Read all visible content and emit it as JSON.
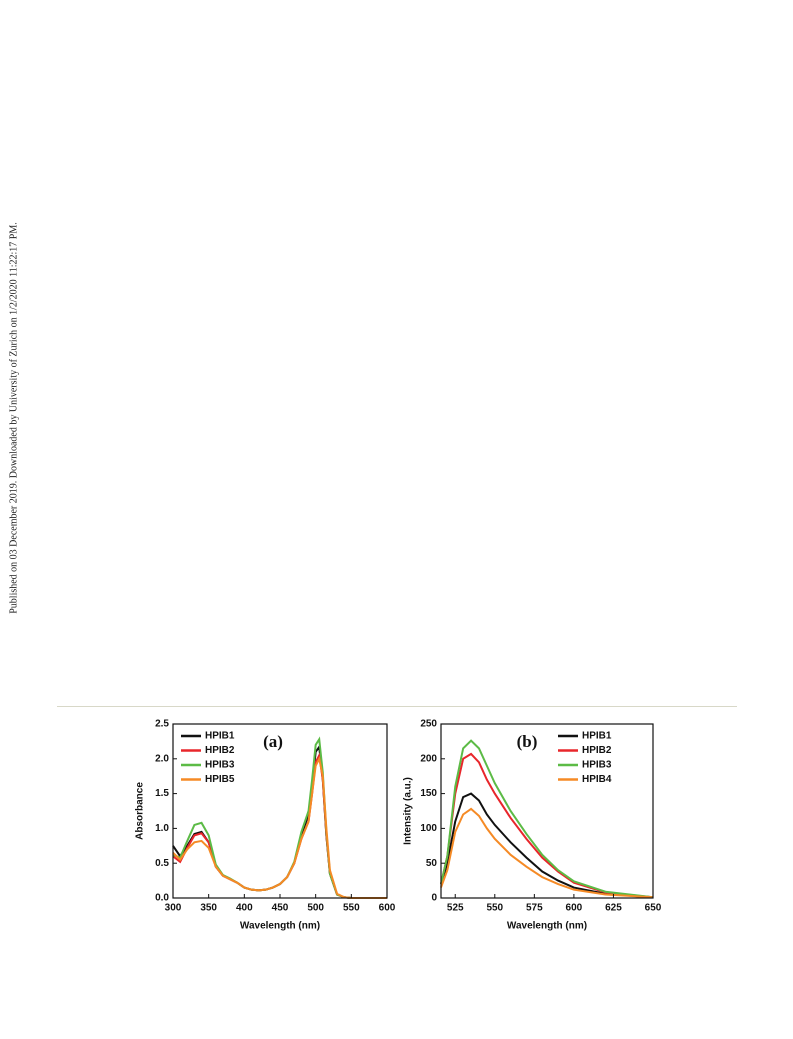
{
  "side_note": "Published on 03 December 2019. Downloaded by University of Zurich on 1/2/2020 11:22:17 PM.",
  "chart_data": [
    {
      "type": "line",
      "annotation": "(a)",
      "x_label": "Wavelength (nm)",
      "y_label": "Absorbance",
      "legend": "upper left",
      "xlim": [
        300,
        600
      ],
      "xticks": [
        300,
        350,
        400,
        450,
        500,
        550,
        600
      ],
      "ylim": [
        0,
        2.5
      ],
      "yticks": [
        {
          "value": 0,
          "label": "0.0"
        },
        0.5,
        {
          "value": 1,
          "label": "1.0"
        },
        1.5,
        {
          "value": 2,
          "label": "2.0"
        },
        2.5
      ],
      "x": [
        300,
        310,
        320,
        330,
        340,
        350,
        360,
        370,
        380,
        390,
        400,
        410,
        420,
        430,
        440,
        450,
        460,
        470,
        480,
        490,
        495,
        500,
        505,
        510,
        515,
        520,
        530,
        540,
        550,
        560,
        580,
        600
      ],
      "series": [
        {
          "name": "HPIB1",
          "color": "#111111",
          "values": [
            0.75,
            0.6,
            0.75,
            0.92,
            0.95,
            0.8,
            0.45,
            0.32,
            0.27,
            0.22,
            0.15,
            0.12,
            0.11,
            0.12,
            0.15,
            0.2,
            0.3,
            0.5,
            0.9,
            1.2,
            1.6,
            2.1,
            2.17,
            1.7,
            0.9,
            0.35,
            0.05,
            0.01,
            0,
            0,
            0,
            0
          ]
        },
        {
          "name": "HPIB2",
          "color": "#e8262b",
          "values": [
            0.6,
            0.52,
            0.72,
            0.9,
            0.93,
            0.8,
            0.45,
            0.32,
            0.27,
            0.22,
            0.15,
            0.12,
            0.11,
            0.12,
            0.15,
            0.2,
            0.3,
            0.5,
            0.85,
            1.1,
            1.5,
            1.95,
            2.05,
            1.7,
            0.9,
            0.35,
            0.05,
            0.01,
            0,
            0,
            0,
            0
          ]
        },
        {
          "name": "HPIB3",
          "color": "#5cbb46",
          "values": [
            0.62,
            0.58,
            0.82,
            1.05,
            1.08,
            0.9,
            0.48,
            0.33,
            0.28,
            0.22,
            0.15,
            0.12,
            0.11,
            0.12,
            0.15,
            0.2,
            0.3,
            0.52,
            0.95,
            1.25,
            1.7,
            2.2,
            2.28,
            1.8,
            0.95,
            0.35,
            0.05,
            0.01,
            0,
            0,
            0,
            0
          ]
        },
        {
          "name": "HPIB5",
          "color": "#f58a25",
          "values": [
            0.65,
            0.55,
            0.7,
            0.8,
            0.82,
            0.72,
            0.45,
            0.32,
            0.27,
            0.22,
            0.15,
            0.12,
            0.11,
            0.12,
            0.15,
            0.2,
            0.3,
            0.5,
            0.85,
            1.1,
            1.5,
            1.9,
            2.0,
            1.75,
            1.0,
            0.4,
            0.06,
            0.01,
            0,
            0,
            0,
            0
          ]
        }
      ]
    },
    {
      "type": "line",
      "annotation": "(b)",
      "x_label": "Wavelength (nm)",
      "y_label": "Intensity (a.u.)",
      "legend": "upper right",
      "xlim": [
        516,
        650
      ],
      "xticks": [
        525,
        550,
        575,
        600,
        625,
        650
      ],
      "ylim": [
        0,
        250
      ],
      "yticks": [
        0,
        50,
        100,
        150,
        200,
        250
      ],
      "x": [
        516,
        520,
        525,
        530,
        535,
        540,
        545,
        550,
        560,
        570,
        580,
        590,
        600,
        620,
        650
      ],
      "series": [
        {
          "name": "HPIB1",
          "color": "#111111",
          "values": [
            20,
            50,
            110,
            145,
            150,
            140,
            120,
            105,
            80,
            58,
            38,
            25,
            15,
            6,
            1
          ]
        },
        {
          "name": "HPIB2",
          "color": "#e8262b",
          "values": [
            20,
            60,
            150,
            200,
            207,
            195,
            170,
            150,
            115,
            85,
            58,
            38,
            22,
            8,
            1
          ]
        },
        {
          "name": "HPIB3",
          "color": "#5cbb46",
          "values": [
            20,
            60,
            160,
            215,
            226,
            215,
            190,
            165,
            125,
            92,
            62,
            40,
            24,
            9,
            1
          ]
        },
        {
          "name": "HPIB4",
          "color": "#f58a25",
          "values": [
            15,
            40,
            95,
            120,
            128,
            118,
            100,
            85,
            62,
            45,
            30,
            20,
            12,
            5,
            1
          ]
        }
      ]
    }
  ]
}
